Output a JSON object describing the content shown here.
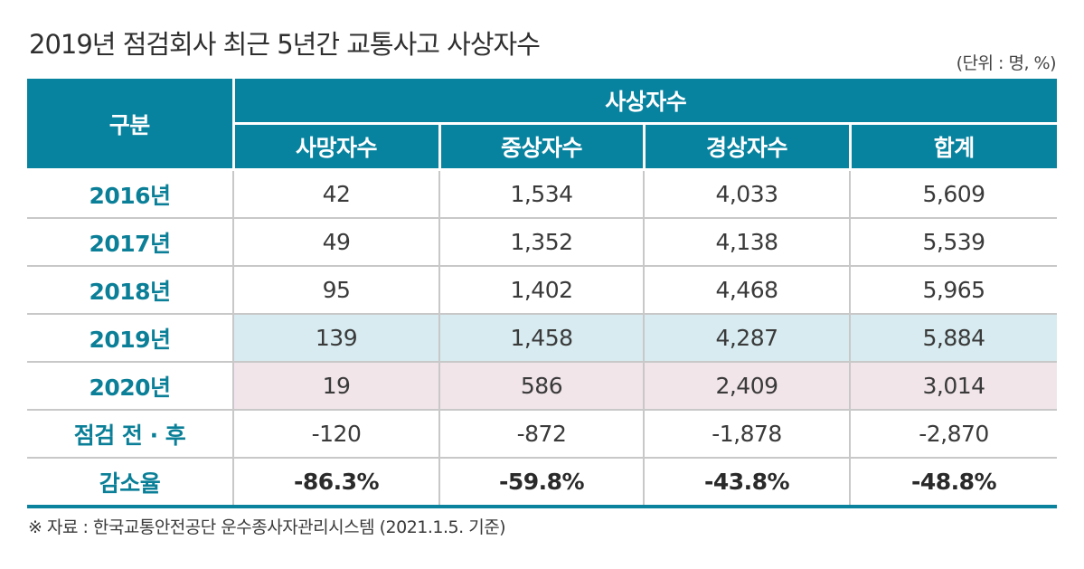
{
  "title": "2019년 점검회사 최근 5년간 교통사고 사상자수",
  "unit": "(단위 : 명, %)",
  "table": {
    "corner_header": "구분",
    "group_header": "사상자수",
    "columns": [
      "사망자수",
      "중상자수",
      "경상자수",
      "합계"
    ],
    "rows": [
      {
        "label": "2016년",
        "values": [
          "42",
          "1,534",
          "4,033",
          "5,609"
        ]
      },
      {
        "label": "2017년",
        "values": [
          "49",
          "1,352",
          "4,138",
          "5,539"
        ]
      },
      {
        "label": "2018년",
        "values": [
          "95",
          "1,402",
          "4,468",
          "5,965"
        ]
      },
      {
        "label": "2019년",
        "values": [
          "139",
          "1,458",
          "4,287",
          "5,884"
        ]
      },
      {
        "label": "2020년",
        "values": [
          "19",
          "586",
          "2,409",
          "3,014"
        ]
      },
      {
        "label": "점검 전 · 후",
        "values": [
          "-120",
          "-872",
          "-1,878",
          "-2,870"
        ]
      },
      {
        "label": "감소율",
        "values": [
          "-86.3%",
          "-59.8%",
          "-43.8%",
          "-48.8%"
        ]
      }
    ]
  },
  "colors": {
    "header_bg": "#07839f",
    "label_text": "#0a7f97",
    "highlight_2019": "#d7ebf0",
    "highlight_2020": "#f1e5ea"
  },
  "note": "※ 자료 : 한국교통안전공단 운수종사자관리시스템 (2021.1.5. 기준)"
}
